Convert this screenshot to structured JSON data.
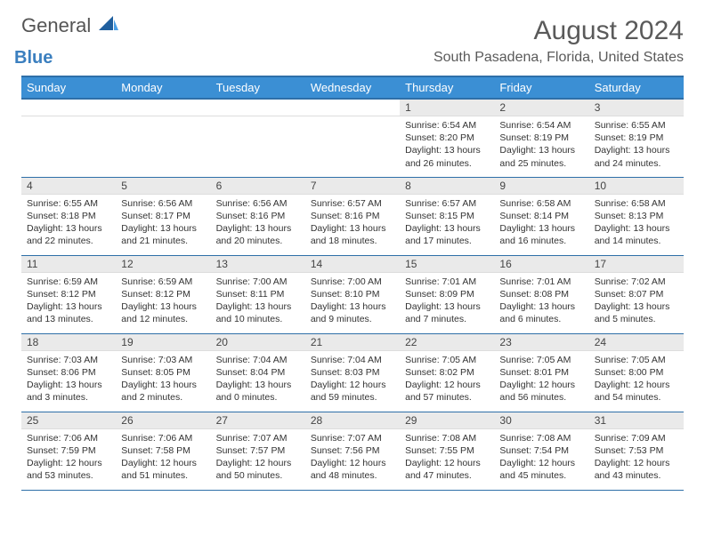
{
  "brand": {
    "word1": "General",
    "word2": "Blue"
  },
  "title": "August 2024",
  "location": "South Pasadena, Florida, United States",
  "colors": {
    "header_bg": "#3b8fd4",
    "header_border": "#2e6fa8",
    "daynum_bg": "#eaeaea",
    "text": "#333333",
    "brand_gray": "#555555",
    "brand_blue": "#3b7fbf"
  },
  "typography": {
    "title_fontsize": 30,
    "location_fontsize": 16,
    "weekday_fontsize": 13,
    "daynum_fontsize": 12,
    "body_fontsize": 10.5
  },
  "weekdays": [
    "Sunday",
    "Monday",
    "Tuesday",
    "Wednesday",
    "Thursday",
    "Friday",
    "Saturday"
  ],
  "weeks": [
    [
      null,
      null,
      null,
      null,
      {
        "n": "1",
        "sunrise": "6:54 AM",
        "sunset": "8:20 PM",
        "dh": "13",
        "dm": "26"
      },
      {
        "n": "2",
        "sunrise": "6:54 AM",
        "sunset": "8:19 PM",
        "dh": "13",
        "dm": "25"
      },
      {
        "n": "3",
        "sunrise": "6:55 AM",
        "sunset": "8:19 PM",
        "dh": "13",
        "dm": "24"
      }
    ],
    [
      {
        "n": "4",
        "sunrise": "6:55 AM",
        "sunset": "8:18 PM",
        "dh": "13",
        "dm": "22"
      },
      {
        "n": "5",
        "sunrise": "6:56 AM",
        "sunset": "8:17 PM",
        "dh": "13",
        "dm": "21"
      },
      {
        "n": "6",
        "sunrise": "6:56 AM",
        "sunset": "8:16 PM",
        "dh": "13",
        "dm": "20"
      },
      {
        "n": "7",
        "sunrise": "6:57 AM",
        "sunset": "8:16 PM",
        "dh": "13",
        "dm": "18"
      },
      {
        "n": "8",
        "sunrise": "6:57 AM",
        "sunset": "8:15 PM",
        "dh": "13",
        "dm": "17"
      },
      {
        "n": "9",
        "sunrise": "6:58 AM",
        "sunset": "8:14 PM",
        "dh": "13",
        "dm": "16"
      },
      {
        "n": "10",
        "sunrise": "6:58 AM",
        "sunset": "8:13 PM",
        "dh": "13",
        "dm": "14"
      }
    ],
    [
      {
        "n": "11",
        "sunrise": "6:59 AM",
        "sunset": "8:12 PM",
        "dh": "13",
        "dm": "13"
      },
      {
        "n": "12",
        "sunrise": "6:59 AM",
        "sunset": "8:12 PM",
        "dh": "13",
        "dm": "12"
      },
      {
        "n": "13",
        "sunrise": "7:00 AM",
        "sunset": "8:11 PM",
        "dh": "13",
        "dm": "10"
      },
      {
        "n": "14",
        "sunrise": "7:00 AM",
        "sunset": "8:10 PM",
        "dh": "13",
        "dm": "9"
      },
      {
        "n": "15",
        "sunrise": "7:01 AM",
        "sunset": "8:09 PM",
        "dh": "13",
        "dm": "7"
      },
      {
        "n": "16",
        "sunrise": "7:01 AM",
        "sunset": "8:08 PM",
        "dh": "13",
        "dm": "6"
      },
      {
        "n": "17",
        "sunrise": "7:02 AM",
        "sunset": "8:07 PM",
        "dh": "13",
        "dm": "5"
      }
    ],
    [
      {
        "n": "18",
        "sunrise": "7:03 AM",
        "sunset": "8:06 PM",
        "dh": "13",
        "dm": "3"
      },
      {
        "n": "19",
        "sunrise": "7:03 AM",
        "sunset": "8:05 PM",
        "dh": "13",
        "dm": "2"
      },
      {
        "n": "20",
        "sunrise": "7:04 AM",
        "sunset": "8:04 PM",
        "dh": "13",
        "dm": "0"
      },
      {
        "n": "21",
        "sunrise": "7:04 AM",
        "sunset": "8:03 PM",
        "dh": "12",
        "dm": "59"
      },
      {
        "n": "22",
        "sunrise": "7:05 AM",
        "sunset": "8:02 PM",
        "dh": "12",
        "dm": "57"
      },
      {
        "n": "23",
        "sunrise": "7:05 AM",
        "sunset": "8:01 PM",
        "dh": "12",
        "dm": "56"
      },
      {
        "n": "24",
        "sunrise": "7:05 AM",
        "sunset": "8:00 PM",
        "dh": "12",
        "dm": "54"
      }
    ],
    [
      {
        "n": "25",
        "sunrise": "7:06 AM",
        "sunset": "7:59 PM",
        "dh": "12",
        "dm": "53"
      },
      {
        "n": "26",
        "sunrise": "7:06 AM",
        "sunset": "7:58 PM",
        "dh": "12",
        "dm": "51"
      },
      {
        "n": "27",
        "sunrise": "7:07 AM",
        "sunset": "7:57 PM",
        "dh": "12",
        "dm": "50"
      },
      {
        "n": "28",
        "sunrise": "7:07 AM",
        "sunset": "7:56 PM",
        "dh": "12",
        "dm": "48"
      },
      {
        "n": "29",
        "sunrise": "7:08 AM",
        "sunset": "7:55 PM",
        "dh": "12",
        "dm": "47"
      },
      {
        "n": "30",
        "sunrise": "7:08 AM",
        "sunset": "7:54 PM",
        "dh": "12",
        "dm": "45"
      },
      {
        "n": "31",
        "sunrise": "7:09 AM",
        "sunset": "7:53 PM",
        "dh": "12",
        "dm": "43"
      }
    ]
  ],
  "labels": {
    "sunrise": "Sunrise:",
    "sunset": "Sunset:",
    "daylight": "Daylight:",
    "hours": "hours",
    "and": "and",
    "minutes": "minutes."
  }
}
